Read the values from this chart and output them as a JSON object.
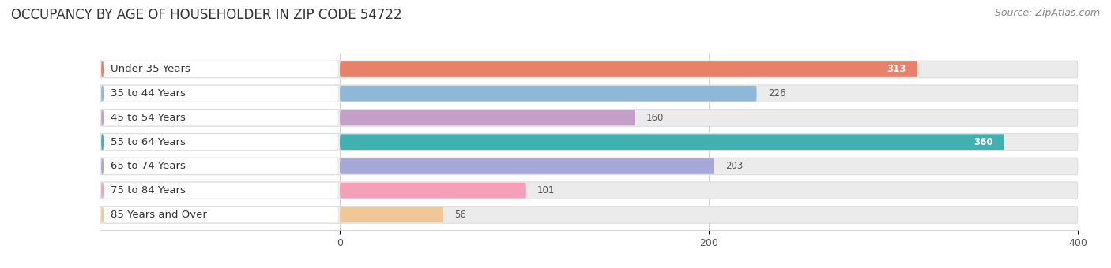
{
  "title": "OCCUPANCY BY AGE OF HOUSEHOLDER IN ZIP CODE 54722",
  "source": "Source: ZipAtlas.com",
  "categories": [
    "Under 35 Years",
    "35 to 44 Years",
    "45 to 54 Years",
    "55 to 64 Years",
    "65 to 74 Years",
    "75 to 84 Years",
    "85 Years and Over"
  ],
  "values": [
    313,
    226,
    160,
    360,
    203,
    101,
    56
  ],
  "bar_colors": [
    "#E8806A",
    "#8FB8D8",
    "#C4A0C8",
    "#42B0B0",
    "#A8A8D8",
    "#F4A0B8",
    "#F0C898"
  ],
  "bar_bg_color": "#EBEBEB",
  "xlim": [
    0,
    400
  ],
  "xticks": [
    0,
    200,
    400
  ],
  "title_fontsize": 12,
  "label_fontsize": 9.5,
  "value_fontsize": 8.5,
  "source_fontsize": 9,
  "fig_bg_color": "#FFFFFF",
  "value_inside_threshold": 300
}
